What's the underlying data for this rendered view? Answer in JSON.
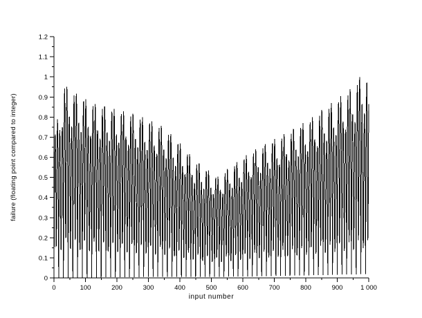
{
  "figure": {
    "background": "#ffffff"
  },
  "chart_data": {
    "type": "line",
    "title": "",
    "xlabel": "input number",
    "ylabel": "failure (floating point compared to integer)",
    "xlim": [
      0,
      1000
    ],
    "ylim": [
      0,
      1.2
    ],
    "grid": false,
    "legend": false,
    "style": {
      "line_color": "#000000",
      "axis_color": "#000000",
      "background": "#ffffff"
    },
    "x_ticks": {
      "major_values": [
        0,
        100,
        200,
        300,
        400,
        500,
        600,
        700,
        800,
        900,
        1000
      ],
      "labels": [
        "0",
        "100",
        "200",
        "300",
        "400",
        "500",
        "600",
        "700",
        "800",
        "900",
        "1 000"
      ],
      "minor_values": [
        50,
        150,
        250,
        350,
        450,
        550,
        650,
        750,
        850,
        950
      ]
    },
    "y_ticks": {
      "major_values": [
        0,
        0.1,
        0.2,
        0.3,
        0.4,
        0.5,
        0.6,
        0.7,
        0.8,
        0.9,
        1.0,
        1.1,
        1.2
      ],
      "labels": [
        "0",
        "0.1",
        "0.2",
        "0.3",
        "0.4",
        "0.5",
        "0.6",
        "0.7",
        "0.8",
        "0.9",
        "1",
        "1.1",
        "1.2"
      ],
      "minor_values": [
        0.05,
        0.15,
        0.25,
        0.35,
        0.45,
        0.55,
        0.65,
        0.75,
        0.85,
        0.95,
        1.05,
        1.15
      ]
    },
    "series": [
      {
        "name": "failure",
        "description": "Rapidly oscillating black curve sampled at integer inputs 0-1000; near-vertical spikes between ~0 and a V-shaped upper envelope: ~0.96 near n=30, decreasing to a minimum of ~0.49 near n=520, then rising to ~1.01 near n=985. Spikes occur roughly every 7-8 input units with beat-modulated heights.",
        "synthesis": {
          "formula": "y(n) = envelope(n) * |sin(omega*n)| * (0.72 + 0.28*|sin(beat*n + 0.7)|)",
          "omega": 0.4189,
          "beat": 0.1047,
          "n_start": 0,
          "n_end": 1000,
          "n_step": 1,
          "envelope_points": [
            [
              0,
              0.7
            ],
            [
              30,
              0.98
            ],
            [
              80,
              0.92
            ],
            [
              130,
              0.88
            ],
            [
              200,
              0.85
            ],
            [
              250,
              0.83
            ],
            [
              300,
              0.8
            ],
            [
              350,
              0.76
            ],
            [
              400,
              0.68
            ],
            [
              450,
              0.59
            ],
            [
              520,
              0.51
            ],
            [
              560,
              0.56
            ],
            [
              620,
              0.63
            ],
            [
              700,
              0.7
            ],
            [
              760,
              0.75
            ],
            [
              820,
              0.81
            ],
            [
              880,
              0.88
            ],
            [
              940,
              0.95
            ],
            [
              985,
              1.04
            ],
            [
              1000,
              0.99
            ]
          ]
        }
      }
    ]
  }
}
